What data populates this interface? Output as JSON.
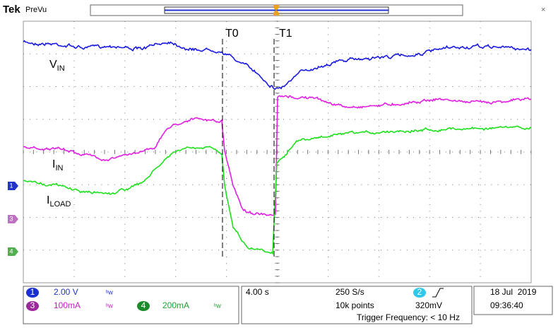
{
  "header": {
    "brand": "Tek",
    "mode": "PreVu"
  },
  "markers": {
    "t0": "T0",
    "t1": "T1"
  },
  "labels": {
    "vin": {
      "main": "V",
      "sub": "IN"
    },
    "iin": {
      "main": "I",
      "sub": "IN"
    },
    "iload": {
      "main": "I",
      "sub": "LOAD"
    }
  },
  "channels": [
    {
      "number": "1",
      "scale": "2.00 V"
    },
    {
      "number": "3",
      "scale": "100mA"
    },
    {
      "number": "4",
      "scale": "200mA"
    }
  ],
  "timebase": {
    "time_div": "4.00 s",
    "sample_rate": "250 S/s",
    "record_length": "10k points"
  },
  "trigger": {
    "channel": "2",
    "level": "320mV",
    "frequency": "Trigger Frequency: < 10 Hz"
  },
  "date": {
    "date": "18 Jul  2019",
    "time": "09:36:40"
  }
}
